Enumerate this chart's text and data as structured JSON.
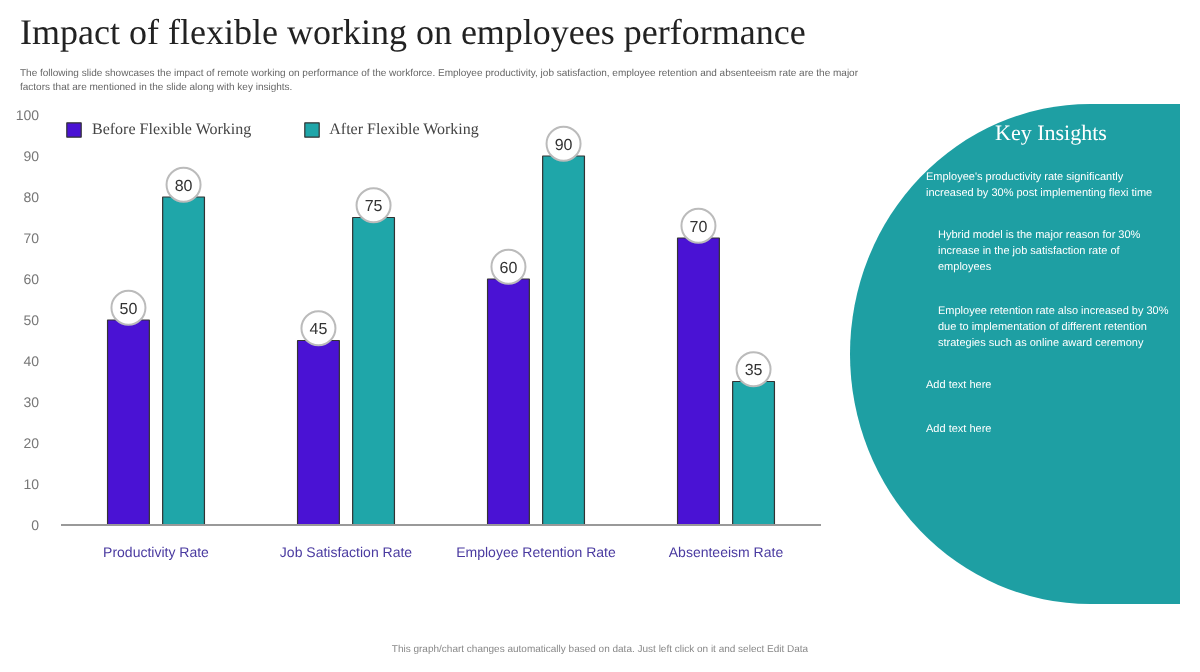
{
  "chart_data": {
    "type": "bar",
    "title": "Impact of flexible working on employees performance",
    "subtitle": "The following slide showcases the impact of remote working on performance of the workforce. Employee productivity, job satisfaction, employee retention and absenteeism rate are the major factors that are mentioned in the slide along with key insights.",
    "categories": [
      "Productivity Rate",
      "Job Satisfaction Rate",
      "Employee Retention Rate",
      "Absenteeism Rate"
    ],
    "series": [
      {
        "name": "Before Flexible Working",
        "color": "#4a12d4",
        "values": [
          50,
          45,
          60,
          70
        ]
      },
      {
        "name": "After Flexible Working",
        "color": "#1fa6a9",
        "values": [
          80,
          75,
          90,
          35
        ]
      }
    ],
    "ylim": [
      0,
      100
    ],
    "yticks": [
      0,
      10,
      20,
      30,
      40,
      50,
      60,
      70,
      80,
      90,
      100
    ],
    "grid": false,
    "legend": "top",
    "data_labels": true,
    "annotations": [
      "Key Insights",
      "Employee's productivity rate significantly increased by 30% post implementing flexi time",
      "Hybrid model is the major reason for 30% increase in the job satisfaction rate of employees",
      "Employee retention rate also increased by 30% due to implementation of different retention strategies such as online award ceremony",
      "Add text here",
      "Add text here",
      "This graph/chart changes automatically based on data. Just left click on it and select Edit Data"
    ]
  }
}
